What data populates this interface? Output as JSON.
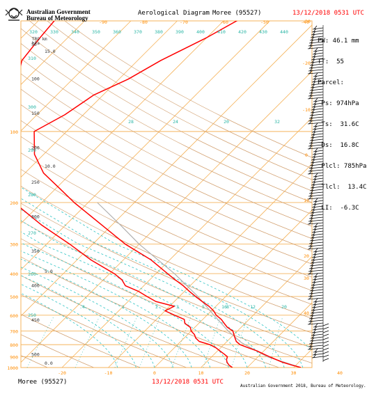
{
  "header": {
    "organisation_line1": "Australian Government",
    "organisation_line2": "Bureau of Meteorology",
    "title": "Aerological Diagram",
    "station": "Moree (95527)",
    "datetime": "13/12/2018 0531 UTC"
  },
  "footer": {
    "station": "Moree (95527)",
    "datetime": "13/12/2018 0531 UTC",
    "credit": "Australian Government 2018, Bureau of Meteorology."
  },
  "stats": [
    "PW: 46.1 mm",
    "TT:  55",
    "Parcel:",
    " Ps: 974hPa",
    " Ts:  31.6C",
    " Ds:  16.8C",
    " Plcl: 785hPa",
    " Tlcl:  13.4C",
    " LI:  -6.3C"
  ],
  "colors": {
    "grid": "#f5b35b",
    "adiabat": "#d2a070",
    "moist": "#2ec4c4",
    "mixing": "#29b5a5",
    "temperature": "#ff0000",
    "parcel": "#b0b0b0",
    "wind": "#000000"
  },
  "chart_data": {
    "type": "skew-t log-p aerological diagram",
    "y_axis_label": "hPa",
    "height_axis_label": "TRO km",
    "pressure_ticks": [
      1000,
      900,
      800,
      700,
      600,
      500,
      400,
      300,
      200,
      100
    ],
    "pressure_ticks_upper": [
      50,
      100,
      150,
      200,
      250,
      300,
      350,
      400,
      450,
      500
    ],
    "temperature_ticks_bottom": [
      -20,
      -10,
      0,
      10,
      20,
      30,
      40
    ],
    "temperature_ticks_top": [
      -90,
      -80,
      -70,
      -60,
      -50,
      -40
    ],
    "temperature_ticks_right": [
      40,
      30,
      20,
      10,
      0,
      -10,
      -20,
      -30,
      -40
    ],
    "theta_labels": [
      320,
      330,
      340,
      350,
      360,
      370,
      380,
      390,
      400,
      410,
      420,
      430,
      440
    ],
    "theta_labels_left": [
      310,
      300,
      290,
      280,
      270,
      260,
      250
    ],
    "moist_adiabat_labels": [
      28,
      24,
      20,
      32,
      16,
      12
    ],
    "mixing_ratio_labels": [
      1,
      2,
      3,
      5,
      8,
      12,
      20
    ],
    "mixing_ratio_left_label": ".4",
    "height_labels_km": [
      "15.0",
      "10.0",
      "5.0",
      "0.0"
    ],
    "temperature_profile": [
      [
        1000,
        31.6
      ],
      [
        975,
        29.0
      ],
      [
        950,
        26.5
      ],
      [
        925,
        24.5
      ],
      [
        900,
        22.5
      ],
      [
        875,
        20.5
      ],
      [
        850,
        18.5
      ],
      [
        825,
        16.0
      ],
      [
        800,
        13.5
      ],
      [
        775,
        12.0
      ],
      [
        750,
        11.0
      ],
      [
        725,
        10.0
      ],
      [
        700,
        9.0
      ],
      [
        675,
        7.0
      ],
      [
        650,
        5.5
      ],
      [
        625,
        4.0
      ],
      [
        600,
        2.0
      ],
      [
        575,
        0.5
      ],
      [
        550,
        -1.5
      ],
      [
        525,
        -4.0
      ],
      [
        500,
        -6.5
      ],
      [
        475,
        -9.0
      ],
      [
        450,
        -11.5
      ],
      [
        425,
        -14.5
      ],
      [
        400,
        -17.5
      ],
      [
        350,
        -24.0
      ],
      [
        300,
        -33.0
      ],
      [
        250,
        -42.0
      ],
      [
        200,
        -53.0
      ],
      [
        175,
        -59.0
      ],
      [
        150,
        -66.0
      ],
      [
        125,
        -72.0
      ],
      [
        100,
        -77.0
      ],
      [
        85,
        -74.0
      ],
      [
        70,
        -72.0
      ],
      [
        60,
        -68.0
      ],
      [
        50,
        -65.0
      ],
      [
        40,
        -60.0
      ],
      [
        30,
        -55.0
      ]
    ],
    "dewpoint_profile": [
      [
        1000,
        16.8
      ],
      [
        975,
        15.5
      ],
      [
        950,
        14.5
      ],
      [
        925,
        13.8
      ],
      [
        900,
        13.4
      ],
      [
        875,
        12.0
      ],
      [
        850,
        10.5
      ],
      [
        825,
        9.0
      ],
      [
        800,
        7.0
      ],
      [
        775,
        4.0
      ],
      [
        750,
        2.5
      ],
      [
        725,
        1.5
      ],
      [
        700,
        0.0
      ],
      [
        675,
        -1.0
      ],
      [
        650,
        -3.0
      ],
      [
        625,
        -4.0
      ],
      [
        600,
        -7.0
      ],
      [
        575,
        -10.0
      ],
      [
        550,
        -9.0
      ],
      [
        525,
        -14.0
      ],
      [
        500,
        -17.0
      ],
      [
        475,
        -20.0
      ],
      [
        450,
        -24.0
      ],
      [
        425,
        -26.0
      ],
      [
        400,
        -29.0
      ],
      [
        350,
        -37.0
      ],
      [
        300,
        -45.0
      ],
      [
        250,
        -55.0
      ],
      [
        200,
        -66.0
      ],
      [
        150,
        -75.0
      ],
      [
        125,
        -82.0
      ],
      [
        100,
        -87.0
      ],
      [
        80,
        -90.0
      ],
      [
        60,
        -92.0
      ],
      [
        50,
        -95.0
      ],
      [
        40,
        -96.0
      ],
      [
        30,
        -97.0
      ]
    ],
    "parcel_path": [
      [
        1000,
        31.6
      ],
      [
        900,
        22.0
      ],
      [
        785,
        13.4
      ],
      [
        700,
        8.0
      ],
      [
        600,
        1.5
      ],
      [
        500,
        -6.0
      ],
      [
        400,
        -16.0
      ],
      [
        300,
        -30.0
      ],
      [
        250,
        -38.0
      ],
      [
        200,
        -48.0
      ]
    ]
  }
}
